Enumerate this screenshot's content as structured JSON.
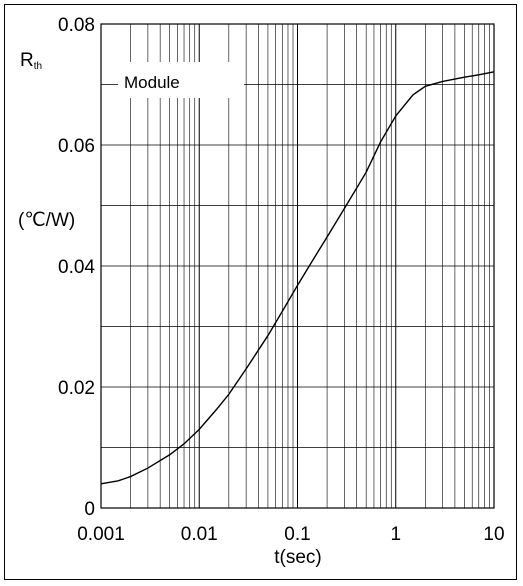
{
  "chart_data": {
    "type": "line",
    "x_scale": "log",
    "xlim": [
      0.001,
      10
    ],
    "ylim": [
      0,
      0.08
    ],
    "grid": true,
    "x_ticks": [
      "0.001",
      "0.01",
      "0.1",
      "1",
      "10"
    ],
    "y_ticks": [
      "0",
      "0.02",
      "0.04",
      "0.06",
      "0.08"
    ],
    "ylabel_main": "R",
    "ylabel_sub": "th",
    "ylabel_unit": "(℃/W)",
    "xlabel": "t(sec)",
    "annotation": "Module",
    "series": [
      {
        "x": [
          0.001,
          0.0015,
          0.002,
          0.003,
          0.005,
          0.007,
          0.01,
          0.015,
          0.02,
          0.03,
          0.05,
          0.07,
          0.1,
          0.15,
          0.2,
          0.3,
          0.5,
          0.7,
          1,
          1.5,
          2,
          3,
          5,
          7,
          10
        ],
        "y": [
          0.004,
          0.0045,
          0.0052,
          0.0066,
          0.0088,
          0.0106,
          0.013,
          0.0163,
          0.0188,
          0.023,
          0.0285,
          0.0325,
          0.0368,
          0.0415,
          0.0448,
          0.0495,
          0.0555,
          0.0605,
          0.0648,
          0.0683,
          0.0697,
          0.0705,
          0.0712,
          0.0716,
          0.0721
        ]
      }
    ]
  }
}
